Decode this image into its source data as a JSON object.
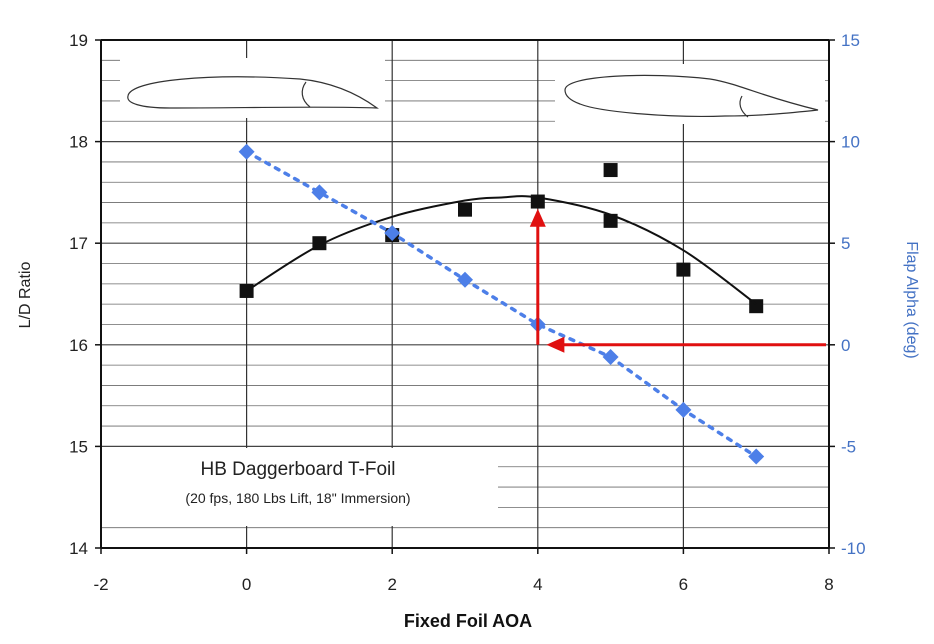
{
  "chart_data": {
    "type": "scatter",
    "title": "",
    "xlabel": "Fixed Foil AOA",
    "ylabel": "L/D Ratio",
    "ylabel_right": "Flap Alpha (deg)",
    "xlim": [
      -2,
      8
    ],
    "ylim": [
      14,
      19
    ],
    "ylim_right": [
      -10,
      15
    ],
    "x_ticks": [
      "-2",
      "0",
      "2",
      "4",
      "6",
      "8"
    ],
    "y_ticks": [
      "14",
      "15",
      "16",
      "17",
      "18",
      "19"
    ],
    "y_ticks_right": [
      "-10",
      "-5",
      "0",
      "5",
      "10",
      "15"
    ],
    "grid": true,
    "series": [
      {
        "axis": "left",
        "marker": "square",
        "color": "#111111",
        "x": [
          0,
          1,
          2,
          3,
          4,
          5,
          5,
          6,
          7
        ],
        "y": [
          16.53,
          17.0,
          17.08,
          17.33,
          17.41,
          17.72,
          17.22,
          16.74,
          16.38
        ]
      },
      {
        "axis": "left",
        "line": "solid-curve",
        "color": "#111111",
        "x": [
          0,
          1,
          2,
          3,
          3.5,
          4,
          5,
          6,
          7
        ],
        "y": [
          16.53,
          16.98,
          17.26,
          17.42,
          17.45,
          17.45,
          17.28,
          16.93,
          16.4
        ]
      },
      {
        "axis": "right",
        "marker": "diamond",
        "line": "dotted",
        "color": "#4d7fe8",
        "x": [
          0,
          1,
          2,
          3,
          4,
          5,
          6,
          7
        ],
        "y": [
          9.5,
          7.5,
          5.5,
          3.2,
          1.0,
          -0.6,
          -3.2,
          -5.5
        ]
      }
    ],
    "annotations": {
      "box_title": "HB Daggerboard T-Foil",
      "box_subtitle": "(20 fps, 180 Lbs Lift, 18\" Immersion)",
      "arrow_color": "#e01010"
    }
  }
}
